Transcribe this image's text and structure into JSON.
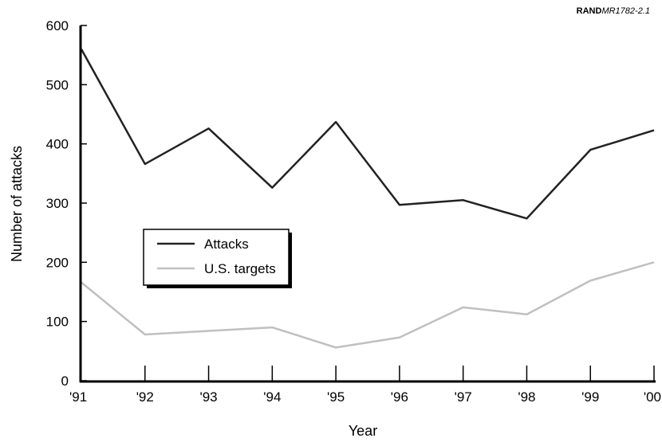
{
  "source_tag": {
    "bold": "RAND",
    "italic": "MR1782-2.1"
  },
  "chart_data": {
    "type": "line",
    "categories": [
      "'91",
      "'92",
      "'93",
      "'94",
      "'95",
      "'96",
      "'97",
      "'98",
      "'99",
      "'00"
    ],
    "series": [
      {
        "name": "Attacks",
        "values": [
          560,
          366,
          426,
          326,
          437,
          297,
          305,
          274,
          390,
          423
        ],
        "color": "#222222"
      },
      {
        "name": "U.S. targets",
        "values": [
          166,
          78,
          84,
          90,
          56,
          73,
          124,
          112,
          169,
          200
        ],
        "color": "#c0c0c0"
      }
    ],
    "xlabel": "Year",
    "ylabel": "Number of attacks",
    "ylim": [
      0,
      600
    ],
    "yticks": [
      0,
      100,
      200,
      300,
      400,
      500,
      600
    ],
    "grid": false,
    "legend": "center-left"
  }
}
